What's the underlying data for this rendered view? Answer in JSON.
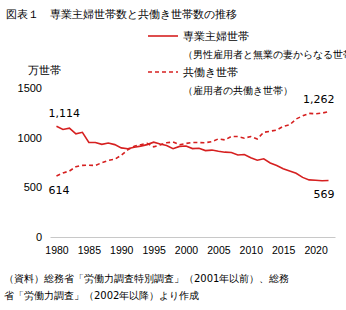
{
  "chart_data": {
    "type": "line",
    "title": "図表１　専業主婦世帯数と共働き世帯数の推移",
    "y_label": "万世帯",
    "caption": [
      "（資料）総務省「労働力調査特別調査」（2001年以前）、総務",
      "省「労働力調査」（2002年以降）より作成"
    ],
    "x": [
      1980,
      1981,
      1982,
      1983,
      1984,
      1985,
      1986,
      1987,
      1988,
      1989,
      1990,
      1991,
      1992,
      1993,
      1994,
      1995,
      1996,
      1997,
      1998,
      1999,
      2000,
      2001,
      2002,
      2003,
      2004,
      2005,
      2006,
      2007,
      2008,
      2009,
      2010,
      2011,
      2012,
      2013,
      2014,
      2015,
      2016,
      2017,
      2018,
      2019,
      2020,
      2021,
      2022
    ],
    "xlim": [
      1979,
      2023
    ],
    "xticks": [
      1980,
      1985,
      1990,
      1995,
      2000,
      2005,
      2010,
      2015,
      2020
    ],
    "ylim": [
      0,
      1500
    ],
    "yticks": [
      0,
      500,
      1000,
      1500
    ],
    "grid": false,
    "series": [
      {
        "name": "専業主婦世帯",
        "description": "（男性雇用者と無業の妻からなる世帯）",
        "color": "#d62020",
        "line_style": "solid",
        "values": [
          1114,
          1082,
          1096,
          1038,
          1054,
          952,
          952,
          933,
          946,
          930,
          897,
          888,
          903,
          915,
          930,
          955,
          937,
          921,
          889,
          912,
          916,
          890,
          894,
          870,
          875,
          863,
          854,
          851,
          825,
          831,
          797,
          773,
          787,
          745,
          720,
          687,
          664,
          641,
          600,
          575,
          571,
          566,
          569
        ],
        "value_labels": [
          "1,114",
          null,
          null,
          null,
          null,
          null,
          null,
          null,
          null,
          null,
          null,
          null,
          null,
          null,
          null,
          null,
          null,
          null,
          null,
          null,
          null,
          null,
          null,
          null,
          null,
          null,
          null,
          null,
          null,
          null,
          null,
          null,
          null,
          null,
          null,
          null,
          null,
          null,
          null,
          null,
          null,
          null,
          "569"
        ]
      },
      {
        "name": "共働き世帯",
        "description": "（雇用者の共働き世帯）",
        "color": "#d62020",
        "line_style": "dashed",
        "values": [
          614,
          645,
          664,
          708,
          721,
          722,
          720,
          748,
          771,
          783,
          823,
          877,
          914,
          929,
          943,
          908,
          927,
          949,
          956,
          929,
          942,
          951,
          951,
          949,
          961,
          988,
          977,
          1013,
          1011,
          995,
          1012,
          987,
          1054,
          1065,
          1077,
          1114,
          1129,
          1188,
          1219,
          1245,
          1240,
          1247,
          1262
        ],
        "value_labels": [
          "614",
          null,
          null,
          null,
          null,
          null,
          null,
          null,
          null,
          null,
          null,
          null,
          null,
          null,
          null,
          null,
          null,
          null,
          null,
          null,
          null,
          null,
          null,
          null,
          null,
          null,
          null,
          null,
          null,
          null,
          null,
          null,
          null,
          null,
          null,
          null,
          null,
          null,
          null,
          null,
          null,
          null,
          "1,262"
        ]
      }
    ]
  }
}
